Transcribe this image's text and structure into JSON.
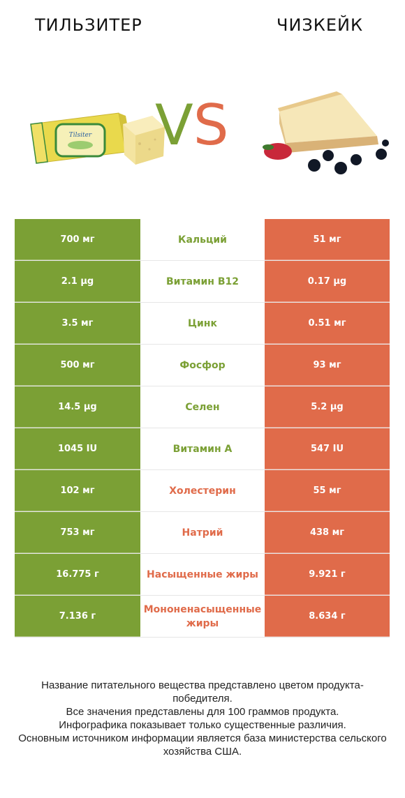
{
  "header": {
    "left_title": "Тильзитер",
    "right_title": "Чизкейк",
    "vs_v": "V",
    "vs_s": "S"
  },
  "colors": {
    "winner_left": "#7ba035",
    "winner_right": "#e06b4a"
  },
  "rows": [
    {
      "left": "700 мг",
      "label": "Кальций",
      "right": "51 мг",
      "winner": "left"
    },
    {
      "left": "2.1 µg",
      "label": "Витамин B12",
      "right": "0.17 µg",
      "winner": "left"
    },
    {
      "left": "3.5 мг",
      "label": "Цинк",
      "right": "0.51 мг",
      "winner": "left"
    },
    {
      "left": "500 мг",
      "label": "Фосфор",
      "right": "93 мг",
      "winner": "left"
    },
    {
      "left": "14.5 µg",
      "label": "Селен",
      "right": "5.2 µg",
      "winner": "left"
    },
    {
      "left": "1045 IU",
      "label": "Витамин A",
      "right": "547 IU",
      "winner": "left"
    },
    {
      "left": "102 мг",
      "label": "Холестерин",
      "right": "55 мг",
      "winner": "right"
    },
    {
      "left": "753 мг",
      "label": "Натрий",
      "right": "438 мг",
      "winner": "right"
    },
    {
      "left": "16.775 г",
      "label": "Насыщенные жиры",
      "right": "9.921 г",
      "winner": "right"
    },
    {
      "left": "7.136 г",
      "label": "Мононенасыщенные жиры",
      "right": "8.634 г",
      "winner": "right"
    }
  ],
  "footer": {
    "line1": "Название питательного вещества представлено цветом продукта-победителя.",
    "line2": "Все значения представлены для 100 граммов продукта.",
    "line3": "Инфографика показывает только существенные различия.",
    "line4": "Основным источником информации является база министерства сельского хозяйства США."
  },
  "images": {
    "left": "tilsiter-cheese-image",
    "right": "cheesecake-image"
  }
}
